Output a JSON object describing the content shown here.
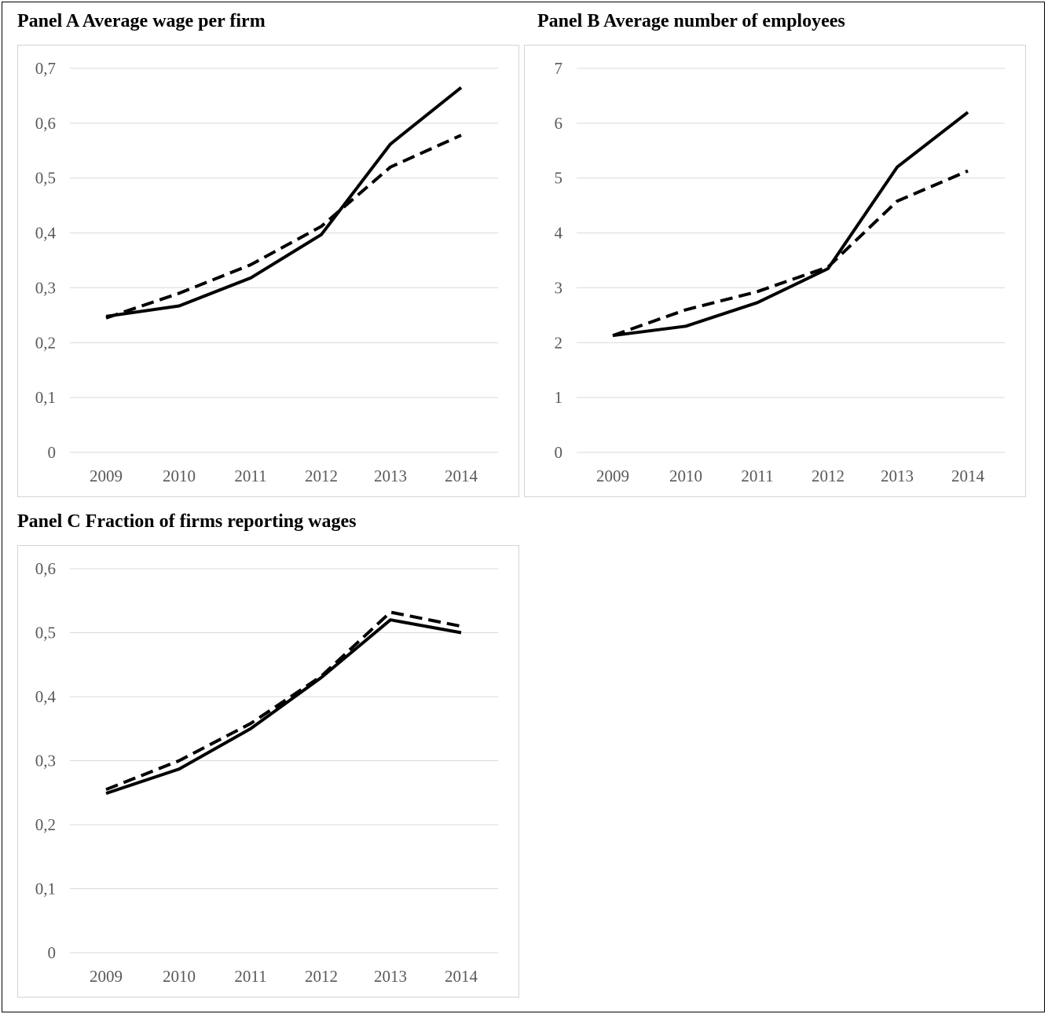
{
  "panels": {
    "a": {
      "title": "Panel A Average wage per firm"
    },
    "b": {
      "title": "Panel B Average number of employees"
    },
    "c": {
      "title": "Panel C Fraction of firms reporting wages"
    }
  },
  "chart_data": [
    {
      "type": "line",
      "title": "Panel A Average wage per firm",
      "x": [
        "2009",
        "2010",
        "2011",
        "2012",
        "2013",
        "2014"
      ],
      "ylim": [
        0,
        0.7
      ],
      "yticks": [
        "0",
        "0,1",
        "0,2",
        "0,3",
        "0,4",
        "0,5",
        "0,6",
        "0,7"
      ],
      "grid": true,
      "series": [
        {
          "style": "solid",
          "color": "#000000",
          "values": [
            0.248,
            0.267,
            0.318,
            0.397,
            0.562,
            0.665
          ]
        },
        {
          "style": "dashed",
          "color": "#000000",
          "values": [
            0.245,
            0.29,
            0.342,
            0.412,
            0.52,
            0.578
          ]
        }
      ]
    },
    {
      "type": "line",
      "title": "Panel B Average number of employees",
      "x": [
        "2009",
        "2010",
        "2011",
        "2012",
        "2013",
        "2014"
      ],
      "ylim": [
        0,
        7
      ],
      "yticks": [
        "0",
        "1",
        "2",
        "3",
        "4",
        "5",
        "6",
        "7"
      ],
      "grid": true,
      "series": [
        {
          "style": "solid",
          "color": "#000000",
          "values": [
            2.13,
            2.3,
            2.73,
            3.35,
            5.2,
            6.2
          ]
        },
        {
          "style": "dashed",
          "color": "#000000",
          "values": [
            2.13,
            2.6,
            2.93,
            3.38,
            4.58,
            5.13
          ]
        }
      ]
    },
    {
      "type": "line",
      "title": "Panel C Fraction of firms reporting wages",
      "x": [
        "2009",
        "2010",
        "2011",
        "2012",
        "2013",
        "2014"
      ],
      "ylim": [
        0,
        0.6
      ],
      "yticks": [
        "0",
        "0,1",
        "0,2",
        "0,3",
        "0,4",
        "0,5",
        "0,6"
      ],
      "grid": true,
      "series": [
        {
          "style": "solid",
          "color": "#000000",
          "values": [
            0.249,
            0.287,
            0.35,
            0.43,
            0.52,
            0.5
          ]
        },
        {
          "style": "dashed",
          "color": "#000000",
          "values": [
            0.255,
            0.3,
            0.358,
            0.432,
            0.532,
            0.51
          ]
        }
      ]
    }
  ]
}
